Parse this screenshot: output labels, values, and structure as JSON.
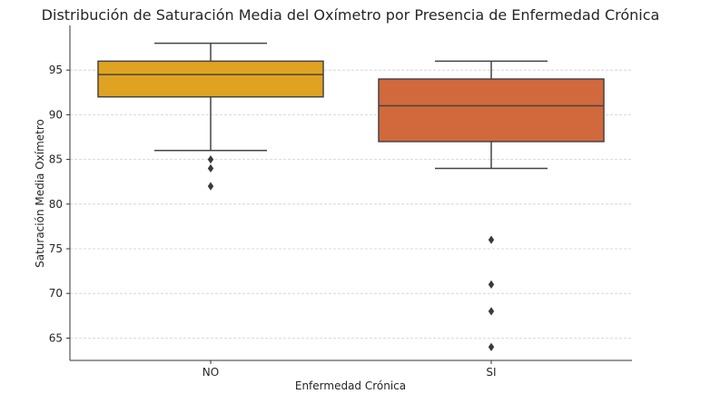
{
  "chart_data": {
    "type": "box",
    "title": "Distribución de Saturación Media del Oxímetro por Presencia de Enfermedad Crónica",
    "xlabel": "Enfermedad Crónica",
    "ylabel": "Saturación Media Oxímetro",
    "ylim": [
      62.5,
      100
    ],
    "yticks": [
      65,
      70,
      75,
      80,
      85,
      90,
      95
    ],
    "grid": "horizontal dashed",
    "categories": [
      "NO",
      "SI"
    ],
    "boxes": [
      {
        "category": "NO",
        "whisker_low": 86,
        "q1": 92,
        "median": 94.5,
        "q3": 96,
        "whisker_high": 98,
        "outliers": [
          85,
          84,
          82
        ],
        "color": "#e0a321"
      },
      {
        "category": "SI",
        "whisker_low": 84,
        "q1": 87,
        "median": 91,
        "q3": 94,
        "whisker_high": 96,
        "outliers": [
          76,
          71,
          68,
          64
        ],
        "color": "#d2693c"
      }
    ]
  }
}
